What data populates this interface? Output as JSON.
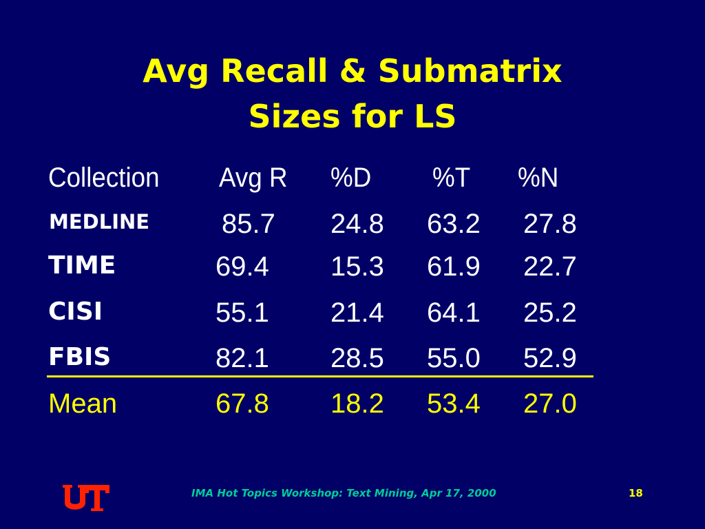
{
  "title": {
    "line1": "Avg Recall & Submatrix",
    "line2": "Sizes for LS"
  },
  "table": {
    "headers": [
      "Collection",
      "Avg R",
      "%D",
      "%T",
      "%N"
    ],
    "rows": [
      {
        "label": "MEDLINE",
        "values": [
          "85.7",
          "24.8",
          "63.2",
          "27.8"
        ]
      },
      {
        "label": "TIME",
        "values": [
          "69.4",
          "15.3",
          "61.9",
          "22.7"
        ]
      },
      {
        "label": "CISI",
        "values": [
          "55.1",
          "21.4",
          "64.1",
          "25.2"
        ]
      },
      {
        "label": "FBIS",
        "values": [
          "82.1",
          "28.5",
          "55.0",
          "52.9"
        ]
      }
    ],
    "mean": {
      "label": "Mean",
      "values": [
        "67.8",
        "18.2",
        "53.4",
        "27.0"
      ]
    }
  },
  "footer": {
    "text": "IMA Hot Topics Workshop: Text Mining, Apr 17, 2000",
    "page_number": "18",
    "logo": "ut-logo"
  },
  "colors": {
    "background": "#000066",
    "title": "#ffff00",
    "mean": "#ffff00",
    "footer_text": "#00cc99",
    "logo": "#ff2200"
  }
}
